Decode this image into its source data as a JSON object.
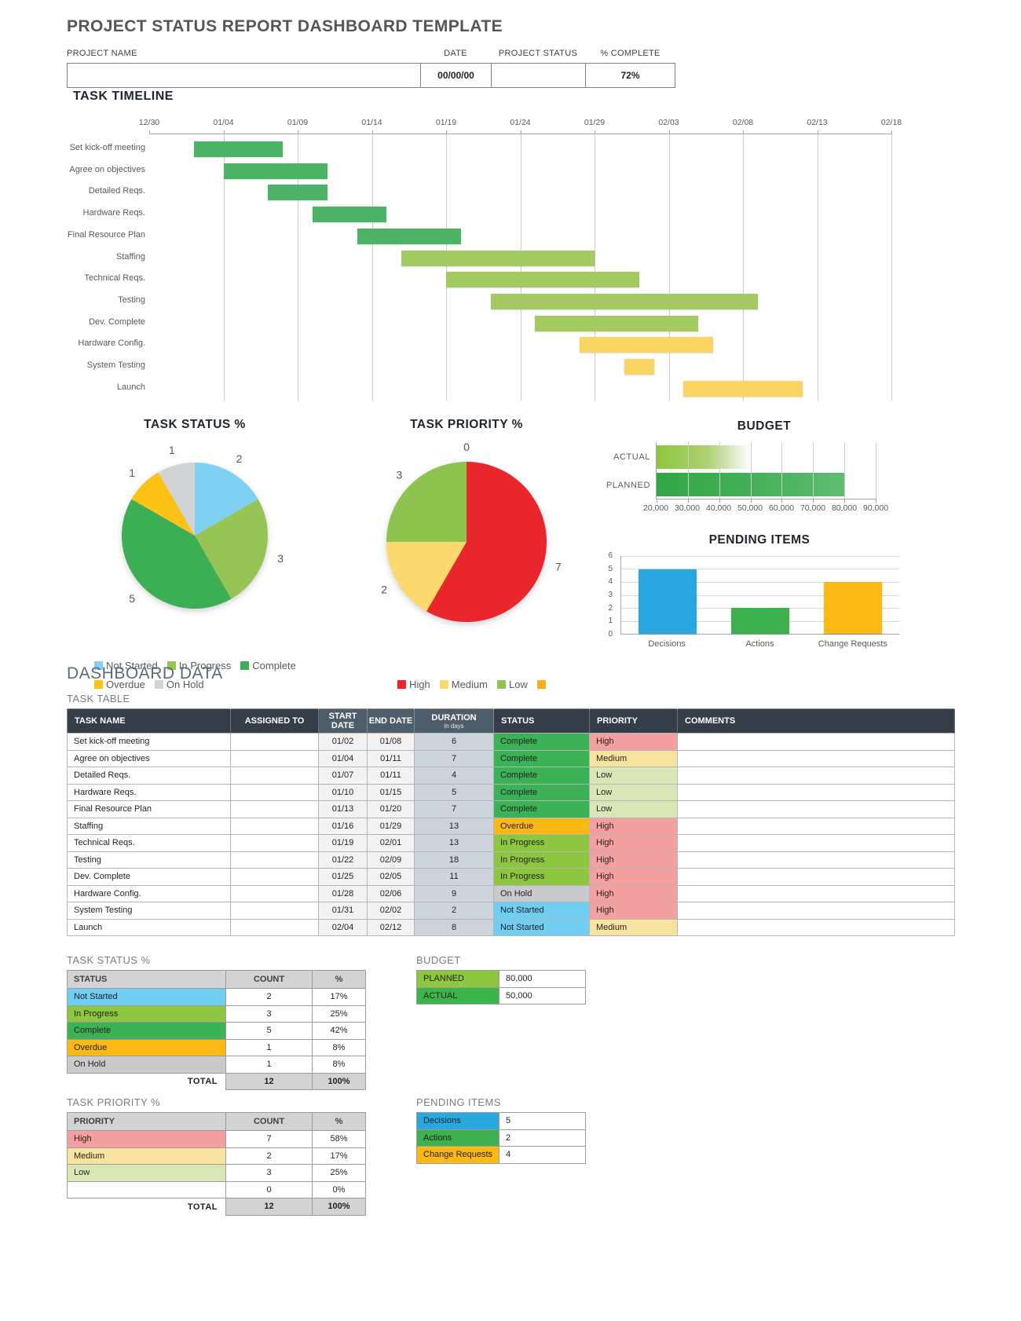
{
  "title": "PROJECT STATUS REPORT DASHBOARD TEMPLATE",
  "header": {
    "project_name_label": "PROJECT NAME",
    "project_name_value": "",
    "date_label": "DATE",
    "date_value": "00/00/00",
    "status_label": "PROJECT STATUS",
    "status_value": "",
    "complete_label": "% COMPLETE",
    "complete_value": "72%"
  },
  "sections": {
    "timeline_title": "TASK TIMELINE",
    "dashboard_data_title": "DASHBOARD DATA",
    "task_table_label": "TASK TABLE",
    "status_table_label": "TASK STATUS %",
    "budget_table_label": "BUDGET",
    "priority_table_label": "TASK PRIORITY %",
    "pending_table_label": "PENDING ITEMS"
  },
  "colors": {
    "status": {
      "complete": "#3cb257",
      "in_progress": "#8dc63f",
      "overdue": "#fcb814",
      "on_hold": "#c9cacc",
      "not_started": "#70cef3"
    },
    "priority": {
      "high": "#f5a0a0",
      "medium": "#f8e3a1",
      "low": "#d9e7b7"
    },
    "table_header_dark": "#333e48",
    "table_header_light": "#4e5d6a",
    "duration_col": "#ccd4dd"
  },
  "chart_data": [
    {
      "id": "task_timeline",
      "type": "gantt",
      "title": "TASK TIMELINE",
      "axis_ticks": [
        "12/30",
        "01/04",
        "01/09",
        "01/14",
        "01/19",
        "01/24",
        "01/29",
        "02/03",
        "02/08",
        "02/13",
        "02/18"
      ],
      "day_span": 50,
      "tasks": [
        {
          "name": "Set kick-off meeting",
          "start": "01/02",
          "end": "01/08",
          "status": "Complete",
          "bar_color": "#4db366"
        },
        {
          "name": "Agree on objectives",
          "start": "01/04",
          "end": "01/11",
          "status": "Complete",
          "bar_color": "#4db366"
        },
        {
          "name": "Detailed Reqs.",
          "start": "01/07",
          "end": "01/11",
          "status": "Complete",
          "bar_color": "#4db366"
        },
        {
          "name": "Hardware Reqs.",
          "start": "01/10",
          "end": "01/15",
          "status": "Complete",
          "bar_color": "#4db366"
        },
        {
          "name": "Final Resource Plan",
          "start": "01/13",
          "end": "01/20",
          "status": "Complete",
          "bar_color": "#4db366"
        },
        {
          "name": "Staffing",
          "start": "01/16",
          "end": "01/29",
          "status": "Overdue",
          "bar_color": "#a3cb62"
        },
        {
          "name": "Technical Reqs.",
          "start": "01/19",
          "end": "02/01",
          "status": "In Progress",
          "bar_color": "#a3cb62"
        },
        {
          "name": "Testing",
          "start": "01/22",
          "end": "02/09",
          "status": "In Progress",
          "bar_color": "#a3cb62"
        },
        {
          "name": "Dev. Complete",
          "start": "01/25",
          "end": "02/05",
          "status": "In Progress",
          "bar_color": "#a3cb62"
        },
        {
          "name": "Hardware Config.",
          "start": "01/28",
          "end": "02/06",
          "status": "On Hold",
          "bar_color": "#fbd564"
        },
        {
          "name": "System Testing",
          "start": "01/31",
          "end": "02/02",
          "status": "Not Started",
          "bar_color": "#fbd564"
        },
        {
          "name": "Launch",
          "start": "02/04",
          "end": "02/12",
          "status": "Not Started",
          "bar_color": "#fbd564"
        }
      ]
    },
    {
      "id": "task_status_pie",
      "type": "pie",
      "title": "TASK STATUS %",
      "slices": [
        {
          "label": "Not Started",
          "value": 2,
          "color": "#7fd0f3"
        },
        {
          "label": "In Progress",
          "value": 3,
          "color": "#96c556"
        },
        {
          "label": "Complete",
          "value": 5,
          "color": "#3cae53"
        },
        {
          "label": "Overdue",
          "value": 1,
          "color": "#fcc215"
        },
        {
          "label": "On Hold",
          "value": 1,
          "color": "#d2d3d5"
        }
      ],
      "legend_layout": [
        [
          0,
          1,
          2
        ],
        [
          3,
          4
        ]
      ]
    },
    {
      "id": "task_priority_pie",
      "type": "pie",
      "title": "TASK PRIORITY %",
      "slices": [
        {
          "label": "High",
          "value": 7,
          "color": "#e8262c"
        },
        {
          "label": "Medium",
          "value": 2,
          "color": "#fbd96d"
        },
        {
          "label": "Low",
          "value": 3,
          "color": "#8fc350"
        },
        {
          "label": "",
          "value": 0,
          "color": "#f5af18"
        }
      ],
      "legend_layout": [
        [
          0,
          1,
          2,
          3
        ]
      ]
    },
    {
      "id": "budget_chart",
      "type": "bar",
      "orientation": "horizontal",
      "title": "BUDGET",
      "categories": [
        "ACTUAL",
        "PLANNED"
      ],
      "values": [
        50000,
        80000
      ],
      "xlim": [
        20000,
        90000
      ],
      "tick_labels": [
        "20,000",
        "30,000",
        "40,000",
        "50,000",
        "60,000",
        "70,000",
        "80,000",
        "90,000"
      ]
    },
    {
      "id": "pending_chart",
      "type": "bar",
      "title": "PENDING ITEMS",
      "categories": [
        "Decisions",
        "Actions",
        "Change Requests"
      ],
      "values": [
        5,
        2,
        4
      ],
      "colors": [
        "#29a8e0",
        "#3cb14e",
        "#fdb913"
      ],
      "ylim": [
        0,
        6
      ],
      "yticks": [
        0,
        1,
        2,
        3,
        4,
        5,
        6
      ]
    }
  ],
  "task_table": {
    "columns": [
      "TASK NAME",
      "ASSIGNED TO",
      "START DATE",
      "END DATE",
      "DURATION",
      "STATUS",
      "PRIORITY",
      "COMMENTS"
    ],
    "duration_sub": "in days",
    "rows": [
      {
        "name": "Set kick-off meeting",
        "assigned": "",
        "start": "01/02",
        "end": "01/08",
        "duration": "6",
        "status": "Complete",
        "priority": "High",
        "comments": ""
      },
      {
        "name": "Agree on objectives",
        "assigned": "",
        "start": "01/04",
        "end": "01/11",
        "duration": "7",
        "status": "Complete",
        "priority": "Medium",
        "comments": ""
      },
      {
        "name": "Detailed Reqs.",
        "assigned": "",
        "start": "01/07",
        "end": "01/11",
        "duration": "4",
        "status": "Complete",
        "priority": "Low",
        "comments": ""
      },
      {
        "name": "Hardware Reqs.",
        "assigned": "",
        "start": "01/10",
        "end": "01/15",
        "duration": "5",
        "status": "Complete",
        "priority": "Low",
        "comments": ""
      },
      {
        "name": "Final Resource Plan",
        "assigned": "",
        "start": "01/13",
        "end": "01/20",
        "duration": "7",
        "status": "Complete",
        "priority": "Low",
        "comments": ""
      },
      {
        "name": "Staffing",
        "assigned": "",
        "start": "01/16",
        "end": "01/29",
        "duration": "13",
        "status": "Overdue",
        "priority": "High",
        "comments": ""
      },
      {
        "name": "Technical Reqs.",
        "assigned": "",
        "start": "01/19",
        "end": "02/01",
        "duration": "13",
        "status": "In Progress",
        "priority": "High",
        "comments": ""
      },
      {
        "name": "Testing",
        "assigned": "",
        "start": "01/22",
        "end": "02/09",
        "duration": "18",
        "status": "In Progress",
        "priority": "High",
        "comments": ""
      },
      {
        "name": "Dev. Complete",
        "assigned": "",
        "start": "01/25",
        "end": "02/05",
        "duration": "11",
        "status": "In Progress",
        "priority": "High",
        "comments": ""
      },
      {
        "name": "Hardware Config.",
        "assigned": "",
        "start": "01/28",
        "end": "02/06",
        "duration": "9",
        "status": "On Hold",
        "priority": "High",
        "comments": ""
      },
      {
        "name": "System Testing",
        "assigned": "",
        "start": "01/31",
        "end": "02/02",
        "duration": "2",
        "status": "Not Started",
        "priority": "High",
        "comments": ""
      },
      {
        "name": "Launch",
        "assigned": "",
        "start": "02/04",
        "end": "02/12",
        "duration": "8",
        "status": "Not Started",
        "priority": "Medium",
        "comments": ""
      }
    ]
  },
  "status_table": {
    "columns": [
      "STATUS",
      "COUNT",
      "%"
    ],
    "rows": [
      {
        "label": "Not Started",
        "count": "2",
        "pct": "17%",
        "key": "not_started"
      },
      {
        "label": "In Progress",
        "count": "3",
        "pct": "25%",
        "key": "in_progress"
      },
      {
        "label": "Complete",
        "count": "5",
        "pct": "42%",
        "key": "complete"
      },
      {
        "label": "Overdue",
        "count": "1",
        "pct": "8%",
        "key": "overdue"
      },
      {
        "label": "On Hold",
        "count": "1",
        "pct": "8%",
        "key": "on_hold"
      }
    ],
    "total_label": "TOTAL",
    "total_count": "12",
    "total_pct": "100%"
  },
  "priority_table": {
    "columns": [
      "PRIORITY",
      "COUNT",
      "%"
    ],
    "rows": [
      {
        "label": "High",
        "count": "7",
        "pct": "58%",
        "key": "high"
      },
      {
        "label": "Medium",
        "count": "2",
        "pct": "17%",
        "key": "medium"
      },
      {
        "label": "Low",
        "count": "3",
        "pct": "25%",
        "key": "low"
      },
      {
        "label": "",
        "count": "0",
        "pct": "0%",
        "key": ""
      }
    ],
    "total_label": "TOTAL",
    "total_count": "12",
    "total_pct": "100%"
  },
  "budget_table": {
    "rows": [
      {
        "label": "PLANNED",
        "value": "80,000",
        "color": "#8dc63f"
      },
      {
        "label": "ACTUAL",
        "value": "50,000",
        "color": "#3bb54a"
      }
    ]
  },
  "pending_table": {
    "rows": [
      {
        "label": "Decisions",
        "value": "5",
        "color": "#29a8e0"
      },
      {
        "label": "Actions",
        "value": "2",
        "color": "#3cb14e"
      },
      {
        "label": "Change Requests",
        "value": "4",
        "color": "#fcb814"
      }
    ]
  }
}
